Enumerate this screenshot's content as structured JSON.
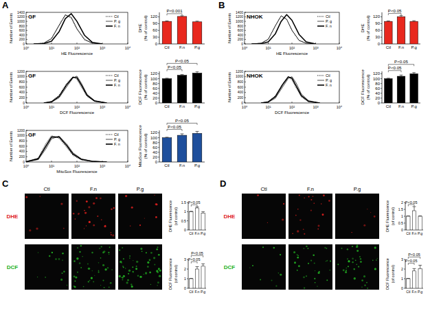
{
  "figure": {
    "panel_labels": [
      "A",
      "B",
      "C",
      "D"
    ],
    "images": [
      {
        "columns": [
          "Ctl",
          "F.n",
          "P.g"
        ],
        "rows": [
          "DHE",
          "DCF"
        ],
        "colors": [
          "#e0201e",
          "#22b022"
        ]
      },
      {
        "columns": [
          "Ctl",
          "F.n",
          "P.g"
        ],
        "rows": [
          "DHE",
          "DCF"
        ],
        "colors": [
          "#e0201e",
          "#22b022"
        ]
      }
    ]
  },
  "chart_data": [
    {
      "type": "line",
      "title": "GF",
      "x_label": "HE Fluorescence",
      "y_label": "Number of Events",
      "log": "x",
      "legend": "upper right",
      "x": [
        2,
        5,
        10,
        20,
        35,
        60,
        100,
        200,
        400,
        1000
      ],
      "xlim": [
        1,
        10000
      ],
      "xticks": [
        {
          "value": 1,
          "label": "10⁰"
        },
        {
          "value": 10,
          "label": "10¹"
        },
        {
          "value": 100,
          "label": "10²"
        },
        {
          "value": 1000,
          "label": "10³"
        },
        {
          "value": 10000,
          "label": "10⁴"
        }
      ],
      "ylim": [
        0,
        1400
      ],
      "yticks": [
        0,
        200,
        400,
        600,
        800,
        1000,
        1200,
        1400
      ],
      "series": [
        {
          "name": "Ctl",
          "color": "#000000",
          "line_style": "dotted",
          "values": [
            0,
            40,
            250,
            850,
            1300,
            1150,
            650,
            180,
            30,
            0
          ]
        },
        {
          "name": "P. g",
          "color": "#000000",
          "line_style": "solid",
          "values": [
            0,
            35,
            230,
            820,
            1280,
            1180,
            680,
            200,
            40,
            0
          ]
        },
        {
          "name": "F. n",
          "color": "#000000",
          "line_style": "bold",
          "values": [
            0,
            15,
            120,
            550,
            1120,
            1340,
            1000,
            380,
            70,
            0
          ]
        }
      ]
    },
    {
      "type": "bar",
      "y_label": "DHE (% of control)",
      "categories": [
        "Ctl",
        "F.n",
        "P.g"
      ],
      "values": [
        100,
        122,
        98
      ],
      "errors": [
        2,
        3,
        3
      ],
      "color": "#e8281e",
      "ylim": [
        0,
        140
      ],
      "yticks": [
        0,
        30,
        60,
        90,
        120
      ],
      "annotations": [
        {
          "text": "P<0.001",
          "between": [
            "Ctl",
            "F.n"
          ]
        }
      ]
    },
    {
      "type": "line",
      "title": "GF",
      "x_label": "DCF Fluorescence",
      "y_label": "Number of Events",
      "log": "x",
      "legend": "upper right",
      "x": [
        5,
        10,
        20,
        40,
        70,
        100,
        150,
        250,
        500,
        1500
      ],
      "xlim": [
        1,
        10000
      ],
      "xticks": [
        {
          "value": 1,
          "label": "10⁰"
        },
        {
          "value": 10,
          "label": "10¹"
        },
        {
          "value": 100,
          "label": "10²"
        },
        {
          "value": 1000,
          "label": "10³"
        },
        {
          "value": 10000,
          "label": "10⁴"
        }
      ],
      "ylim": [
        0,
        1200
      ],
      "yticks": [
        0,
        200,
        400,
        600,
        800,
        1000,
        1200
      ],
      "series": [
        {
          "name": "Ctl",
          "color": "#000000",
          "line_style": "dotted",
          "values": [
            0,
            60,
            300,
            750,
            1000,
            900,
            600,
            250,
            60,
            0
          ]
        },
        {
          "name": "P. g",
          "color": "#000000",
          "line_style": "solid",
          "values": [
            0,
            30,
            200,
            620,
            950,
            1020,
            750,
            330,
            90,
            0
          ]
        },
        {
          "name": "F. n",
          "color": "#000000",
          "line_style": "bold",
          "values": [
            0,
            45,
            250,
            700,
            980,
            960,
            680,
            290,
            70,
            0
          ]
        }
      ]
    },
    {
      "type": "bar",
      "y_label": "DCF Fluorescence (% of control)",
      "categories": [
        "Ctl",
        "F.n",
        "P.g"
      ],
      "values": [
        100,
        114,
        123
      ],
      "errors": [
        2,
        3,
        6
      ],
      "color": "#000000",
      "ylim": [
        0,
        130
      ],
      "yticks": [
        0,
        20,
        40,
        60,
        80,
        100,
        120
      ],
      "annotations": [
        {
          "text": "P<0.05",
          "between": [
            "Ctl",
            "F.n"
          ]
        },
        {
          "text": "P<0.05",
          "between": [
            "Ctl",
            "P.g"
          ]
        }
      ]
    },
    {
      "type": "line",
      "title": "GF",
      "x_label": "MitoSox Fluorescence",
      "y_label": "Number of Events",
      "log": "x",
      "legend": "upper right",
      "x": [
        1,
        3,
        6,
        10,
        20,
        40,
        70,
        150,
        400,
        1500
      ],
      "xlim": [
        1,
        10000
      ],
      "xticks": [
        {
          "value": 1,
          "label": "10⁰"
        },
        {
          "value": 10,
          "label": "10¹"
        },
        {
          "value": 100,
          "label": "10²"
        },
        {
          "value": 1000,
          "label": "10³"
        },
        {
          "value": 10000,
          "label": "10⁴"
        }
      ],
      "ylim": [
        0,
        1200
      ],
      "yticks": [
        0,
        200,
        400,
        600,
        800,
        1000,
        1200
      ],
      "series": [
        {
          "name": "Ctl",
          "color": "#000000",
          "line_style": "dotted",
          "values": [
            10,
            150,
            700,
            1000,
            900,
            550,
            250,
            80,
            20,
            0
          ]
        },
        {
          "name": "P. g",
          "color": "#000000",
          "line_style": "solid",
          "values": [
            5,
            90,
            500,
            880,
            980,
            680,
            350,
            120,
            30,
            0
          ]
        },
        {
          "name": "F. n",
          "color": "#000000",
          "line_style": "bold",
          "values": [
            8,
            120,
            600,
            950,
            950,
            620,
            300,
            100,
            25,
            0
          ]
        }
      ]
    },
    {
      "type": "bar",
      "y_label": "MitoSox Fluorescence (% of control)",
      "categories": [
        "Ctl",
        "F.n",
        "P.g"
      ],
      "values": [
        100,
        110,
        118
      ],
      "errors": [
        2,
        6,
        8
      ],
      "color": "#1f4f9c",
      "ylim": [
        0,
        130
      ],
      "yticks": [
        0,
        20,
        40,
        60,
        80,
        100,
        120
      ],
      "annotations": [
        {
          "text": "P<0.05",
          "between": [
            "Ctl",
            "F.n"
          ]
        },
        {
          "text": "P<0.05",
          "between": [
            "Ctl",
            "P.g"
          ]
        }
      ]
    },
    {
      "type": "line",
      "title": "NHOK",
      "x_label": "HE Fluorescence",
      "y_label": "Number of Events",
      "log": "x",
      "legend": "upper right",
      "x": [
        2,
        5,
        10,
        20,
        35,
        60,
        100,
        200,
        400,
        1000
      ],
      "xlim": [
        1,
        10000
      ],
      "xticks": [
        {
          "value": 1,
          "label": "10⁰"
        },
        {
          "value": 10,
          "label": "10¹"
        },
        {
          "value": 100,
          "label": "10²"
        },
        {
          "value": 1000,
          "label": "10³"
        },
        {
          "value": 10000,
          "label": "10⁴"
        }
      ],
      "ylim": [
        0,
        1400
      ],
      "yticks": [
        0,
        200,
        400,
        600,
        800,
        1000,
        1200,
        1400
      ],
      "series": [
        {
          "name": "Ctl",
          "color": "#000000",
          "line_style": "dotted",
          "values": [
            0,
            30,
            200,
            800,
            1250,
            1100,
            600,
            150,
            30,
            0
          ]
        },
        {
          "name": "P. g",
          "color": "#000000",
          "line_style": "solid",
          "values": [
            0,
            30,
            210,
            810,
            1240,
            1090,
            610,
            160,
            30,
            0
          ]
        },
        {
          "name": "F. n",
          "color": "#000000",
          "line_style": "bold",
          "values": [
            0,
            10,
            90,
            450,
            1000,
            1300,
            1050,
            420,
            90,
            0
          ]
        }
      ]
    },
    {
      "type": "bar",
      "y_label": "DHE (% of control)",
      "categories": [
        "Ctl",
        "F.n",
        "P.g"
      ],
      "values": [
        100,
        121,
        100
      ],
      "errors": [
        2,
        5,
        3
      ],
      "color": "#e8281e",
      "ylim": [
        0,
        140
      ],
      "yticks": [
        0,
        30,
        60,
        90,
        120
      ],
      "annotations": [
        {
          "text": "P<0.05",
          "between": [
            "Ctl",
            "F.n"
          ]
        }
      ]
    },
    {
      "type": "line",
      "title": "NHOK",
      "x_label": "DCF Fluorescence",
      "y_label": "Number of Events",
      "log": "x",
      "legend": "upper right",
      "x": [
        5,
        10,
        20,
        40,
        70,
        100,
        150,
        250,
        500,
        1500
      ],
      "xlim": [
        1,
        10000
      ],
      "xticks": [
        {
          "value": 1,
          "label": "10⁰"
        },
        {
          "value": 10,
          "label": "10¹"
        },
        {
          "value": 100,
          "label": "10²"
        },
        {
          "value": 1000,
          "label": "10³"
        },
        {
          "value": 10000,
          "label": "10⁴"
        }
      ],
      "ylim": [
        0,
        1200
      ],
      "yticks": [
        0,
        200,
        400,
        600,
        800,
        1000,
        1200
      ],
      "series": [
        {
          "name": "Ctl",
          "color": "#000000",
          "line_style": "dotted",
          "values": [
            0,
            50,
            280,
            720,
            1000,
            880,
            580,
            230,
            50,
            0
          ]
        },
        {
          "name": "P. g",
          "color": "#000000",
          "line_style": "solid",
          "values": [
            0,
            25,
            180,
            600,
            930,
            1000,
            760,
            340,
            90,
            0
          ]
        },
        {
          "name": "F. n",
          "color": "#000000",
          "line_style": "bold",
          "values": [
            0,
            40,
            240,
            690,
            990,
            940,
            650,
            280,
            60,
            0
          ]
        }
      ]
    },
    {
      "type": "bar",
      "y_label": "DCF Fluorescence (% of control)",
      "categories": [
        "Ctl",
        "F.n",
        "P.g"
      ],
      "values": [
        100,
        110,
        120
      ],
      "errors": [
        2,
        5,
        5
      ],
      "color": "#000000",
      "ylim": [
        0,
        130
      ],
      "yticks": [
        0,
        20,
        40,
        60,
        80,
        100,
        120
      ],
      "annotations": [
        {
          "text": "P<0.05",
          "between": [
            "Ctl",
            "F.n"
          ]
        },
        {
          "text": "P<0.05",
          "between": [
            "Ctl",
            "P.g"
          ]
        }
      ]
    },
    {
      "type": "bar",
      "y_label": "DHE Fluorescence (of control)",
      "categories": [
        "Ctl",
        "F.n",
        "P.g"
      ],
      "values": [
        1,
        1.2,
        0.92
      ],
      "errors": [
        0.02,
        0.06,
        0.08
      ],
      "color": "#ffffff",
      "ylim": [
        0,
        1.5
      ],
      "yticks": [
        0,
        0.5,
        1,
        1.5
      ],
      "annotations": [
        {
          "text": "P<0.05",
          "between": [
            "Ctl",
            "F.n"
          ]
        }
      ]
    },
    {
      "type": "bar",
      "y_label": "DCF Fluorescence (of control)",
      "categories": [
        "Ctl",
        "F.n",
        "P.g"
      ],
      "values": [
        1,
        2.0,
        2.3
      ],
      "errors": [
        0.03,
        0.25,
        0.25
      ],
      "color": "#ffffff",
      "ylim": [
        0,
        3
      ],
      "yticks": [
        0,
        1,
        2,
        3
      ],
      "annotations": [
        {
          "text": "P<0.05",
          "between": [
            "Ctl",
            "F.n"
          ]
        },
        {
          "text": "P<0.05",
          "between": [
            "Ctl",
            "P.g"
          ]
        }
      ]
    },
    {
      "type": "bar",
      "y_label": "DHE Fluorescence (of control)",
      "categories": [
        "Ctl",
        "F.n",
        "P.g"
      ],
      "values": [
        1,
        1.4,
        1.0
      ],
      "errors": [
        0.02,
        0.3,
        0.02
      ],
      "color": "#ffffff",
      "ylim": [
        0,
        2
      ],
      "yticks": [
        0,
        0.5,
        1,
        1.5,
        2
      ],
      "annotations": [
        {
          "text": "P<0.05",
          "between": [
            "Ctl",
            "F.n"
          ]
        }
      ]
    },
    {
      "type": "bar",
      "y_label": "DCF Fluorescence (of control)",
      "categories": [
        "Ctl",
        "F.n",
        "P.g"
      ],
      "values": [
        1,
        1.8,
        2.05
      ],
      "errors": [
        0.03,
        0.25,
        0.35
      ],
      "color": "#ffffff",
      "ylim": [
        0,
        3
      ],
      "yticks": [
        0,
        1,
        2,
        3
      ],
      "annotations": [
        {
          "text": "P<0.05",
          "between": [
            "Ctl",
            "F.n"
          ]
        },
        {
          "text": "P<0.05",
          "between": [
            "Ctl",
            "P.g"
          ]
        }
      ]
    }
  ]
}
